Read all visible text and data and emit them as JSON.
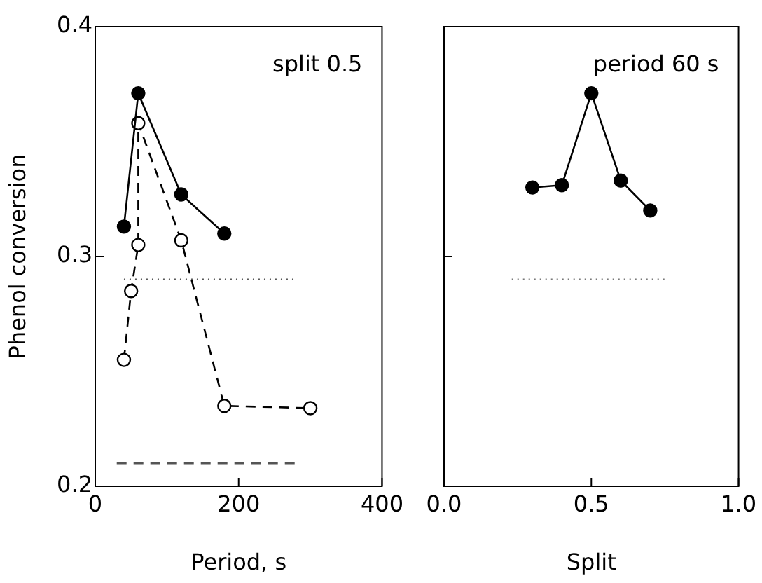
{
  "chart_data": [
    {
      "type": "line",
      "xlabel": "Period, s",
      "ylabel": "Phenol conversion",
      "annotations": [
        "split 0.5"
      ],
      "xlim": [
        0,
        400
      ],
      "xticks": [
        0,
        200,
        400
      ],
      "ylim": [
        0.2,
        0.4
      ],
      "yticks": [
        0.2,
        0.3,
        0.4
      ],
      "grid": false,
      "legend": false,
      "series": [
        {
          "color": "#000000",
          "x": [
            40,
            60,
            120,
            180
          ],
          "values": [
            0.313,
            0.371,
            0.327,
            0.31
          ],
          "marker": "circle",
          "line_style": "solid"
        },
        {
          "color": "#000000",
          "colors": [
            "#ffffff",
            "#ffffff",
            "#ffffff",
            "#ffffff",
            "#ffffff",
            "#ffffff",
            "#ffffff"
          ],
          "x": [
            40,
            50,
            60,
            60,
            120,
            180,
            300
          ],
          "values": [
            0.255,
            0.285,
            0.305,
            0.358,
            0.307,
            0.235,
            0.234
          ],
          "marker": "circle",
          "line_style": "dashed"
        },
        {
          "color": "#555555",
          "x": [
            40,
            280
          ],
          "values": [
            0.29,
            0.29
          ],
          "marker": "none",
          "line_style": "dotted"
        },
        {
          "color": "#555555",
          "x": [
            30,
            280
          ],
          "values": [
            0.21,
            0.21
          ],
          "marker": "none",
          "line_style": "dashed"
        }
      ]
    },
    {
      "type": "line",
      "xlabel": "Split",
      "annotations": [
        "period 60 s"
      ],
      "xlim": [
        0,
        1
      ],
      "xticks": [
        {
          "value": 0,
          "label": "0.0"
        },
        {
          "value": 0.5,
          "label": "0.5"
        },
        {
          "value": 1,
          "label": "1.0"
        }
      ],
      "ylim": [
        0.2,
        0.4
      ],
      "yticks": [
        0.2,
        0.3,
        0.4
      ],
      "tick_labels": "x",
      "grid": false,
      "legend": false,
      "series": [
        {
          "color": "#000000",
          "x": [
            0.3,
            0.4,
            0.5,
            0.6,
            0.7
          ],
          "values": [
            0.33,
            0.331,
            0.371,
            0.333,
            0.32
          ],
          "marker": "circle",
          "line_style": "solid"
        },
        {
          "color": "#777777",
          "x": [
            0.23,
            0.75
          ],
          "values": [
            0.29,
            0.29
          ],
          "marker": "none",
          "line_style": "dotted"
        }
      ]
    }
  ]
}
